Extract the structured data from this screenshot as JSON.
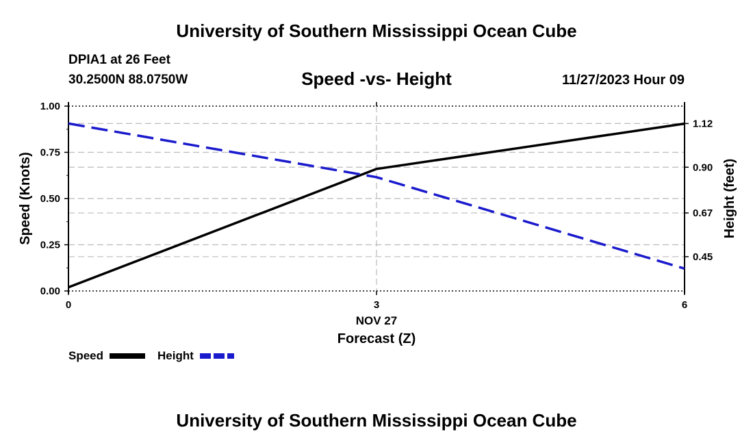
{
  "header": {
    "title": "University of Southern Mississippi Ocean Cube",
    "station_name": "DPIA1 at 26 Feet",
    "coordinates": "30.2500N  88.0750W",
    "subtitle": "Speed -vs- Height",
    "datetime": "11/27/2023 Hour 09"
  },
  "footer": {
    "title": "University of Southern Mississippi Ocean Cube"
  },
  "colors": {
    "speed": "#000000",
    "height": "#1a1acd",
    "grid": "#bbbbbb"
  },
  "chart_data": {
    "type": "line",
    "title": "Speed -vs- Height",
    "x": [
      0,
      3,
      6
    ],
    "x_tick_labels": [
      "0",
      "3",
      "6"
    ],
    "x_date_label": "NOV 27",
    "xlabel": "Forecast (Z)",
    "xlim": [
      0,
      6
    ],
    "ylabel_left": "Speed (Knots)",
    "ylim_left": [
      0,
      1
    ],
    "y_ticks_left": [
      "0.00",
      "0.25",
      "0.50",
      "0.75",
      "1.00"
    ],
    "ylabel_right": "Height (feet)",
    "ylim_right": [
      0.2775,
      1.2075
    ],
    "y_ticks_right": [
      "0.45",
      "0.67",
      "0.90",
      "1.12"
    ],
    "grid": true,
    "legend_position": "bottom-left",
    "series": [
      {
        "name": "Speed",
        "axis": "left",
        "style": "solid",
        "values": [
          0.02,
          0.66,
          0.905
        ]
      },
      {
        "name": "Height",
        "axis": "right",
        "style": "dashed",
        "values": [
          1.12,
          0.85,
          0.39
        ]
      }
    ]
  }
}
